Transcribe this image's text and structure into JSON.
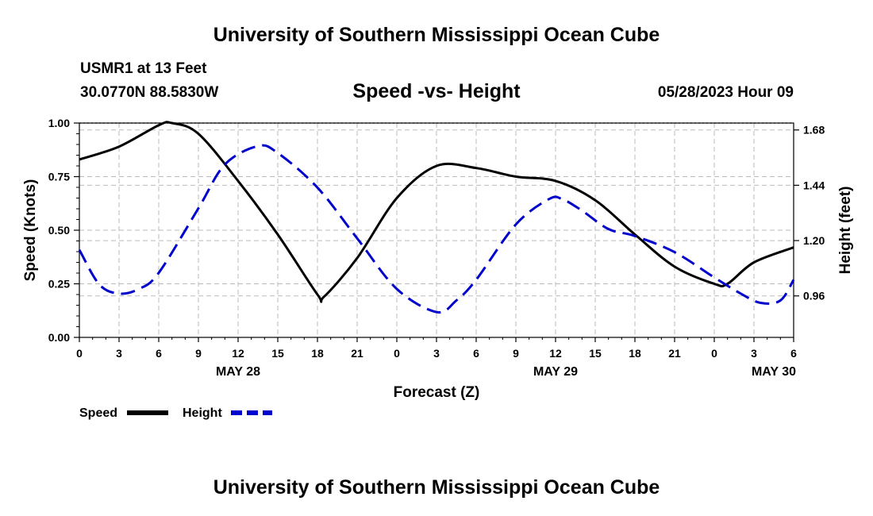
{
  "header": {
    "title": "University of Southern Mississippi Ocean Cube",
    "station": "USMR1 at 13 Feet",
    "coordinates": "30.0770N  88.5830W",
    "subtitle": "Speed -vs- Height",
    "datetime": "05/28/2023 Hour 09"
  },
  "footer": {
    "title": "University of Southern Mississippi Ocean Cube"
  },
  "colors": {
    "speed": "#000000",
    "height": "#0000cc",
    "grid": "#bbbbbb"
  },
  "chart_data": {
    "type": "line",
    "title": "Speed -vs- Height",
    "xlabel": "Forecast (Z)",
    "ylabel": "Speed (Knots)",
    "y2label": "Height (feet)",
    "xlim": [
      0,
      54
    ],
    "ylim": [
      0,
      1
    ],
    "y2lim": [
      0.78,
      1.71
    ],
    "x_ticks": [
      0,
      3,
      6,
      9,
      12,
      15,
      18,
      21,
      24,
      27,
      30,
      33,
      36,
      39,
      42,
      45,
      48,
      51,
      54
    ],
    "x_tick_labels": [
      "0",
      "3",
      "6",
      "9",
      "12",
      "15",
      "18",
      "21",
      "0",
      "3",
      "6",
      "9",
      "12",
      "15",
      "18",
      "21",
      "0",
      "3",
      "6"
    ],
    "date_labels": [
      {
        "x": 12,
        "label": "MAY 28"
      },
      {
        "x": 36,
        "label": "MAY 29"
      },
      {
        "x": 52.5,
        "label": "MAY 30"
      }
    ],
    "y_ticks": [
      0,
      0.25,
      0.5,
      0.75,
      1.0
    ],
    "y_tick_labels": [
      "0.00",
      "0.25",
      "0.50",
      "0.75",
      "1.00"
    ],
    "y2_ticks": [
      0.96,
      1.2,
      1.44,
      1.68
    ],
    "y2_tick_labels": [
      "0.96",
      "1.20",
      "1.44",
      "1.68"
    ],
    "grid": true,
    "legend_placement": "bottom-left",
    "series": [
      {
        "name": "Speed",
        "axis": "left",
        "style": "solid",
        "x": [
          0,
          3,
          6,
          7,
          9,
          12,
          15,
          18,
          18.5,
          21,
          24,
          27,
          30,
          33,
          36,
          39,
          42,
          45,
          48,
          49,
          51,
          54
        ],
        "values": [
          0.83,
          0.89,
          0.99,
          1.0,
          0.95,
          0.73,
          0.48,
          0.2,
          0.19,
          0.37,
          0.65,
          0.8,
          0.79,
          0.75,
          0.73,
          0.64,
          0.48,
          0.33,
          0.25,
          0.25,
          0.35,
          0.42
        ]
      },
      {
        "name": "Height",
        "axis": "right",
        "style": "dashed",
        "x": [
          0,
          1.5,
          3,
          4.5,
          6,
          9,
          11,
          13.5,
          15,
          18,
          21,
          24,
          27,
          28.5,
          30,
          33,
          35.5,
          36.5,
          38,
          40,
          42,
          45,
          48,
          50,
          51.5,
          53,
          54
        ],
        "values": [
          1.16,
          1.01,
          0.97,
          0.99,
          1.06,
          1.34,
          1.53,
          1.61,
          1.58,
          1.43,
          1.21,
          0.99,
          0.89,
          0.94,
          1.03,
          1.27,
          1.38,
          1.38,
          1.33,
          1.25,
          1.22,
          1.15,
          1.04,
          0.97,
          0.93,
          0.94,
          1.03
        ]
      }
    ]
  },
  "legend": {
    "speed_label": "Speed",
    "height_label": "Height"
  }
}
